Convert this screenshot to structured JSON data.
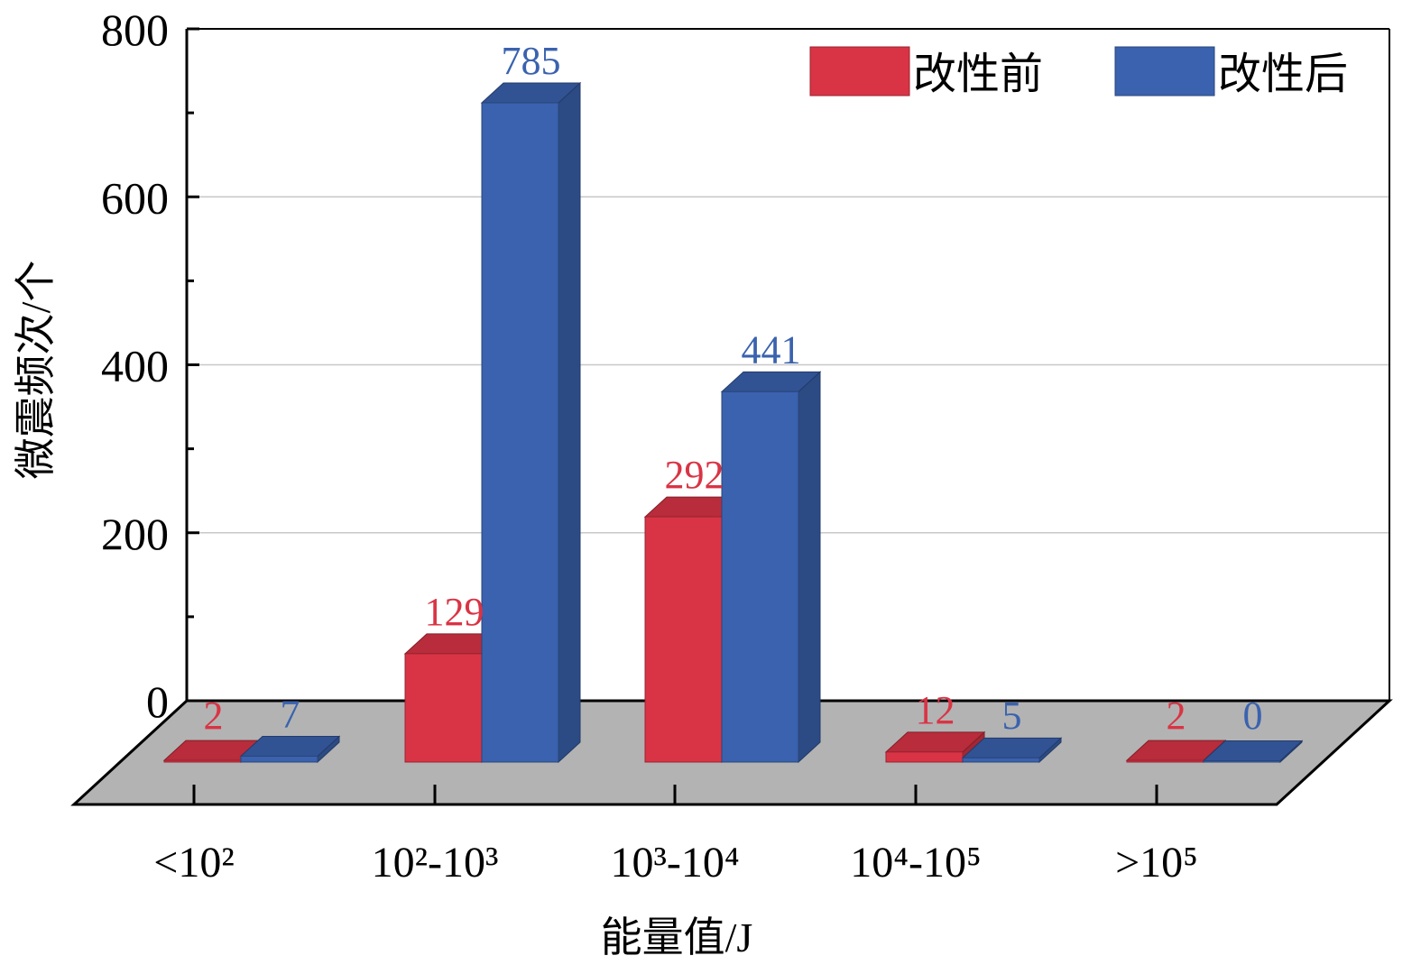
{
  "chart_data": {
    "type": "bar",
    "style": "3d-clustered",
    "title": "",
    "xlabel": "能量值/J",
    "ylabel": "微震频次/个",
    "categories": [
      "<10²",
      "10²-10³",
      "10³-10⁴",
      "10⁴-10⁵",
      ">10⁵"
    ],
    "series": [
      {
        "name": "改性前",
        "color": "#d93445",
        "values": [
          2,
          129,
          292,
          12,
          2
        ]
      },
      {
        "name": "改性后",
        "color": "#3a62ae",
        "values": [
          7,
          785,
          441,
          5,
          0
        ]
      }
    ],
    "ylim": [
      0,
      800
    ],
    "yticks": [
      "0",
      "200",
      "400",
      "600",
      "800"
    ],
    "grid": true,
    "legend_position": "top-right",
    "floor_color": "#b3b3b3"
  }
}
